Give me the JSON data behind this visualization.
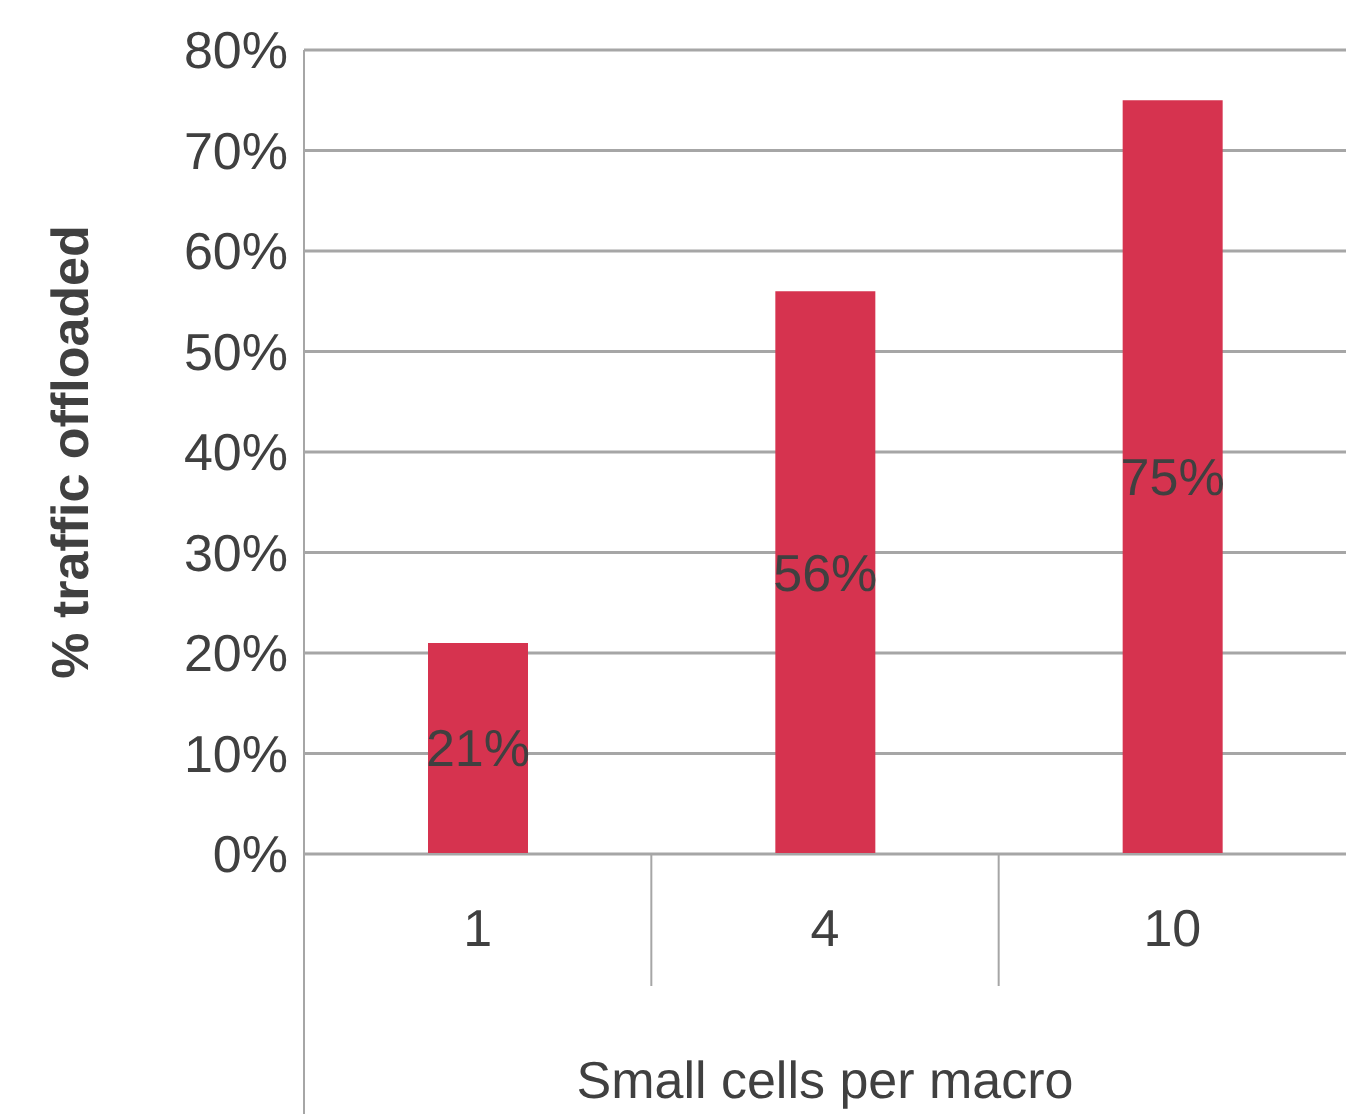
{
  "chart_data": {
    "type": "bar",
    "xlabel": "Small cells per macro",
    "ylabel": "% traffic offloaded",
    "categories": [
      "1",
      "4",
      "10"
    ],
    "values": [
      21,
      56,
      75
    ],
    "color": "#d6334f",
    "ylim": [
      0,
      80
    ],
    "yticks": [
      {
        "value": 0,
        "label": "0%"
      },
      {
        "value": 10,
        "label": "10%"
      },
      {
        "value": 20,
        "label": "20%"
      },
      {
        "value": 30,
        "label": "30%"
      },
      {
        "value": 40,
        "label": "40%"
      },
      {
        "value": 50,
        "label": "50%"
      },
      {
        "value": 60,
        "label": "60%"
      },
      {
        "value": 70,
        "label": "70%"
      },
      {
        "value": 80,
        "label": "80%"
      }
    ],
    "grid": "y",
    "data_labels": true,
    "value_labels": [
      "21%",
      "56%",
      "75%"
    ]
  }
}
